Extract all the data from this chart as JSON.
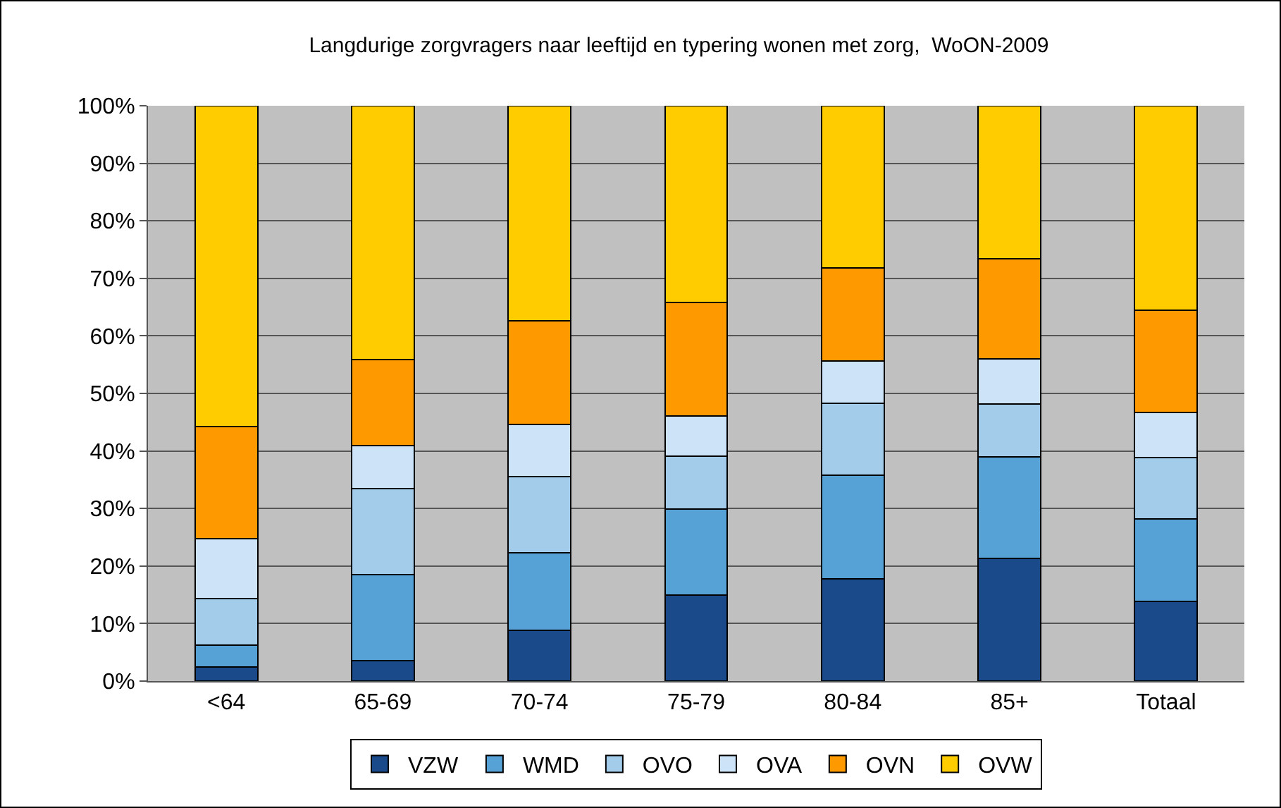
{
  "chart_data": {
    "type": "bar",
    "title": "Langdurige zorgvragers naar leeftijd en typering wonen met zorg,  WoON-2009",
    "stacked": true,
    "categories": [
      "<64",
      "65-69",
      "70-74",
      "75-79",
      "80-84",
      "85+",
      "Totaal"
    ],
    "series": [
      {
        "name": "VZW",
        "color": "#1a4a89",
        "values": [
          2.4,
          3.6,
          8.8,
          14.9,
          17.8,
          21.3,
          13.9
        ]
      },
      {
        "name": "WMD",
        "color": "#56a1d5",
        "values": [
          3.9,
          14.9,
          13.5,
          15.0,
          18.0,
          17.7,
          14.3
        ]
      },
      {
        "name": "OVO",
        "color": "#a3cbea",
        "values": [
          8.0,
          14.9,
          13.3,
          9.2,
          12.5,
          9.2,
          10.7
        ]
      },
      {
        "name": "OVA",
        "color": "#cce3f8",
        "values": [
          10.4,
          7.5,
          9.0,
          7.0,
          7.3,
          7.8,
          7.8
        ]
      },
      {
        "name": "OVN",
        "color": "#ff9900",
        "values": [
          19.6,
          15.0,
          18.0,
          19.7,
          16.2,
          17.4,
          17.8
        ]
      },
      {
        "name": "OVW",
        "color": "#ffcc00",
        "values": [
          55.7,
          44.1,
          37.4,
          34.2,
          28.2,
          26.6,
          35.5
        ]
      }
    ],
    "ylim": [
      0,
      100
    ],
    "yticks": [
      {
        "value": 0,
        "label": "0%"
      },
      {
        "value": 10,
        "label": "10%"
      },
      {
        "value": 20,
        "label": "20%"
      },
      {
        "value": 30,
        "label": "30%"
      },
      {
        "value": 40,
        "label": "40%"
      },
      {
        "value": 50,
        "label": "50%"
      },
      {
        "value": 60,
        "label": "60%"
      },
      {
        "value": 70,
        "label": "70%"
      },
      {
        "value": 80,
        "label": "80%"
      },
      {
        "value": 90,
        "label": "90%"
      },
      {
        "value": 100,
        "label": "100%"
      }
    ],
    "grid": "y",
    "legend": "bottom"
  }
}
